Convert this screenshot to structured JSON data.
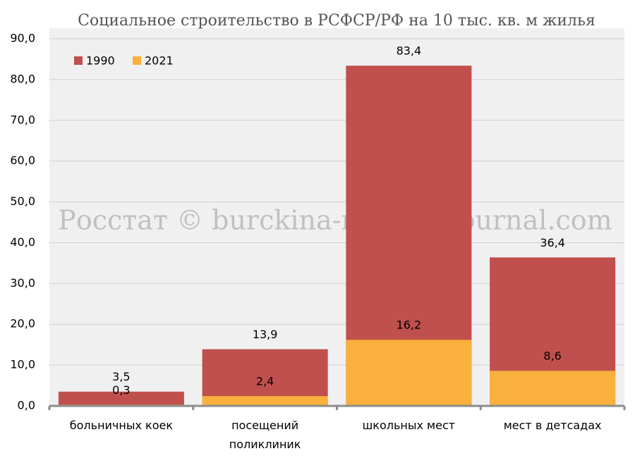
{
  "chart_data": {
    "type": "bar",
    "overlap": true,
    "title": "Социальное строительство в РСФСР/РФ на 10 тыс. кв. м жилья",
    "annotation": "Росстат © burckina-new.livejournal.com",
    "categories": [
      "больничных коек",
      "посещений поликлиник",
      "школьных мест",
      "мест в детсадах"
    ],
    "series": [
      {
        "name": "1990",
        "color": "#c0504d",
        "values": [
          3.5,
          13.9,
          83.4,
          36.4
        ],
        "value_labels": [
          "3,5",
          "13,9",
          "83,4",
          "36,4"
        ]
      },
      {
        "name": "2021",
        "color": "#f9b03c",
        "values": [
          0.3,
          2.4,
          16.2,
          8.6
        ],
        "value_labels": [
          "0,3",
          "2,4",
          "16,2",
          "8,6"
        ]
      }
    ],
    "ylim": [
      0,
      90
    ],
    "yticks": [
      {
        "value": 0,
        "label": "0,0"
      },
      {
        "value": 10,
        "label": "10,0"
      },
      {
        "value": 20,
        "label": "20,0"
      },
      {
        "value": 30,
        "label": "30,0"
      },
      {
        "value": 40,
        "label": "40,0"
      },
      {
        "value": 50,
        "label": "50,0"
      },
      {
        "value": 60,
        "label": "60,0"
      },
      {
        "value": 70,
        "label": "70,0"
      },
      {
        "value": 80,
        "label": "80,0"
      },
      {
        "value": 90,
        "label": "90,0"
      }
    ],
    "grid": true,
    "legend": "top-left"
  }
}
